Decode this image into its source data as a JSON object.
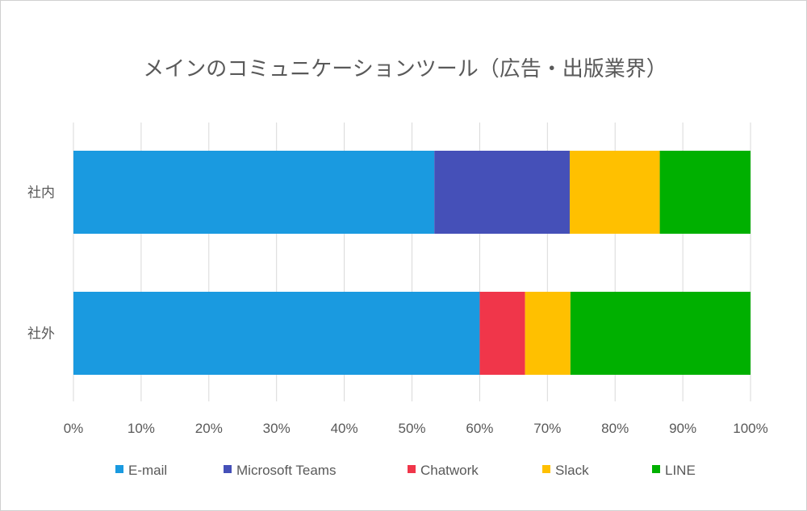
{
  "chart_data": {
    "type": "bar",
    "orientation": "horizontal",
    "stacked": "percent",
    "title": "メインのコミュニケーションツール（広告・出版業界）",
    "categories": [
      "社内",
      "社外"
    ],
    "series": [
      {
        "name": "E-mail",
        "color": "#1a9ae0",
        "values": [
          53.3,
          60.0
        ]
      },
      {
        "name": "Microsoft Teams",
        "color": "#4550b8",
        "values": [
          20.0,
          0
        ]
      },
      {
        "name": "Chatwork",
        "color": "#f0364a",
        "values": [
          0,
          6.7
        ]
      },
      {
        "name": "Slack",
        "color": "#ffc000",
        "values": [
          13.3,
          6.7
        ]
      },
      {
        "name": "LINE",
        "color": "#00b000",
        "values": [
          13.4,
          26.6
        ]
      }
    ],
    "x_ticks": [
      "0%",
      "10%",
      "20%",
      "30%",
      "40%",
      "50%",
      "60%",
      "70%",
      "80%",
      "90%",
      "100%"
    ],
    "xlim": [
      0,
      100
    ],
    "grid": "vertical",
    "legend_position": "bottom"
  }
}
